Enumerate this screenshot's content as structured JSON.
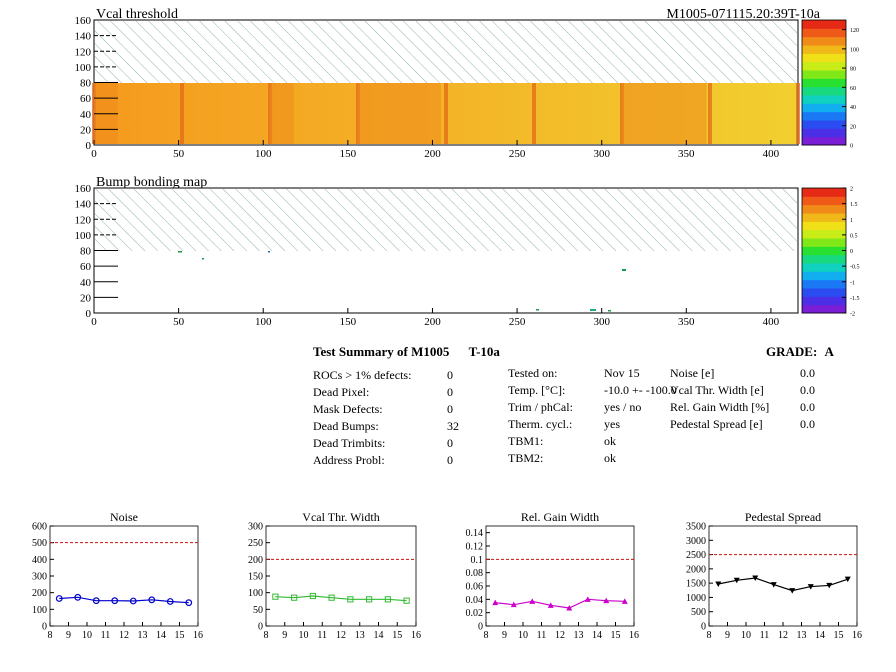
{
  "header": {
    "title_left": "Vcal threshold",
    "title_right": "M1005-071115.20:39T-10a"
  },
  "maps": [
    {
      "id": "vcal",
      "title": "Vcal threshold",
      "x_ticks": [
        0,
        50,
        100,
        150,
        200,
        250,
        300,
        350,
        400
      ],
      "y_ticks": [
        0,
        20,
        40,
        60,
        80,
        100,
        120,
        140,
        160
      ],
      "xlim": [
        0,
        416
      ],
      "ylim": [
        0,
        160
      ],
      "palette_ticks": [
        "0",
        "20",
        "40",
        "60",
        "80",
        "100",
        "120"
      ],
      "palette_range": [
        0,
        130
      ]
    },
    {
      "id": "bump",
      "title": "Bump bonding map",
      "x_ticks": [
        0,
        50,
        100,
        150,
        200,
        250,
        300,
        350,
        400
      ],
      "y_ticks": [
        0,
        20,
        40,
        60,
        80,
        100,
        120,
        140,
        160
      ],
      "xlim": [
        0,
        416
      ],
      "ylim": [
        0,
        160
      ],
      "palette_ticks": [
        "-2",
        "-1.5",
        "-1",
        "-0.5",
        "0",
        "0.5",
        "1",
        "1.5",
        "2"
      ],
      "palette_range": [
        -2,
        2
      ]
    }
  ],
  "summary": {
    "title": "Test Summary of M1005",
    "temp_tag": "T-10a",
    "grade_label": "GRADE:",
    "grade_value": "A",
    "defects": [
      {
        "label": "ROCs > 1% defects:",
        "value": "0"
      },
      {
        "label": "Dead Pixel:",
        "value": "0"
      },
      {
        "label": "Mask Defects:",
        "value": "0"
      },
      {
        "label": "Dead Bumps:",
        "value": "32"
      },
      {
        "label": "Dead Trimbits:",
        "value": "0"
      },
      {
        "label": "Address Probl:",
        "value": "0"
      }
    ],
    "conditions": [
      {
        "label": "Tested on:",
        "value": "Nov 15"
      },
      {
        "label": "Temp. [°C]:",
        "value": "-10.0 +- -100.0"
      },
      {
        "label": "Trim / phCal:",
        "value": "yes / no"
      },
      {
        "label": "Therm. cycl.:",
        "value": "yes"
      },
      {
        "label": "TBM1:",
        "value": "ok"
      },
      {
        "label": "TBM2:",
        "value": "ok"
      }
    ],
    "widths": [
      {
        "label": "Noise [e]",
        "value": "0.0"
      },
      {
        "label": "Vcal Thr. Width [e]",
        "value": "0.0"
      },
      {
        "label": "Rel. Gain Width [%]",
        "value": "0.0"
      },
      {
        "label": "Pedestal Spread [e]",
        "value": "0.0"
      }
    ]
  },
  "chart_data": [
    {
      "type": "line",
      "title": "Noise",
      "color": "#0000cc",
      "marker": "circle",
      "x": [
        8.5,
        9.5,
        10.5,
        11.5,
        12.5,
        13.5,
        14.5,
        15.5
      ],
      "values": [
        165,
        172,
        152,
        152,
        150,
        157,
        147,
        140
      ],
      "xlim": [
        8,
        16
      ],
      "ylim": [
        0,
        600
      ],
      "cut": 500,
      "x_ticks": [
        8,
        9,
        10,
        11,
        12,
        13,
        14,
        15,
        16
      ],
      "y_ticks": [
        "0",
        "100",
        "200",
        "300",
        "400",
        "500",
        "600"
      ]
    },
    {
      "type": "line",
      "title": "Vcal Thr. Width",
      "color": "#33bb33",
      "marker": "square",
      "x": [
        8.5,
        9.5,
        10.5,
        11.5,
        12.5,
        13.5,
        14.5,
        15.5
      ],
      "values": [
        88,
        85,
        90,
        85,
        80,
        80,
        80,
        76
      ],
      "xlim": [
        8,
        16
      ],
      "ylim": [
        0,
        300
      ],
      "cut": 200,
      "x_ticks": [
        8,
        9,
        10,
        11,
        12,
        13,
        14,
        15,
        16
      ],
      "y_ticks": [
        "0",
        "50",
        "100",
        "150",
        "200",
        "250",
        "300"
      ]
    },
    {
      "type": "line",
      "title": "Rel. Gain Width",
      "color": "#cc00cc",
      "marker": "triangle",
      "x": [
        8.5,
        9.5,
        10.5,
        11.5,
        12.5,
        13.5,
        14.5,
        15.5
      ],
      "values": [
        0.035,
        0.032,
        0.037,
        0.031,
        0.027,
        0.04,
        0.038,
        0.037
      ],
      "xlim": [
        8,
        16
      ],
      "ylim": [
        0,
        0.15
      ],
      "cut": 0.1,
      "x_ticks": [
        8,
        9,
        10,
        11,
        12,
        13,
        14,
        15,
        16
      ],
      "y_ticks": [
        "0",
        "0.02",
        "0.04",
        "0.06",
        "0.08",
        "0.1",
        "0.12",
        "0.14"
      ]
    },
    {
      "type": "line",
      "title": "Pedestal Spread",
      "color": "#000000",
      "marker": "triangle-down",
      "x": [
        8.5,
        9.5,
        10.5,
        11.5,
        12.5,
        13.5,
        14.5,
        15.5
      ],
      "values": [
        1470,
        1600,
        1680,
        1450,
        1240,
        1380,
        1420,
        1640
      ],
      "xlim": [
        8,
        16
      ],
      "ylim": [
        0,
        3500
      ],
      "cut": 2500,
      "x_ticks": [
        8,
        9,
        10,
        11,
        12,
        13,
        14,
        15,
        16
      ],
      "y_ticks": [
        "0",
        "500",
        "1000",
        "1500",
        "2000",
        "2500",
        "3000",
        "3500"
      ]
    }
  ]
}
